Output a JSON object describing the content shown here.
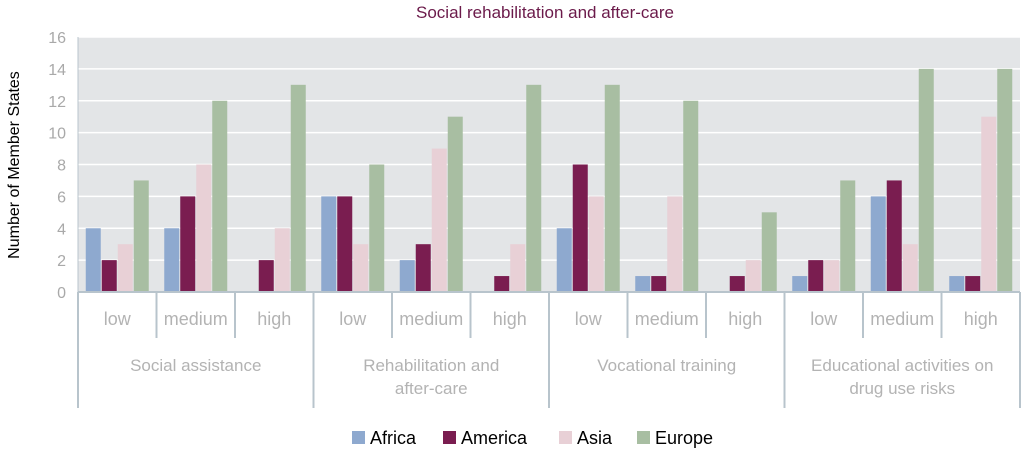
{
  "chart_data": {
    "type": "bar",
    "title": "Social rehabilitation and after-care",
    "ylabel": "Number of Member States",
    "xlabel": "",
    "ylim": [
      0,
      16
    ],
    "yticks": [
      0,
      2,
      4,
      6,
      8,
      10,
      12,
      14,
      16
    ],
    "grid": true,
    "legend_position": "bottom",
    "groups": [
      {
        "label_lines": [
          "Social assistance"
        ],
        "subcategories": [
          "low",
          "medium",
          "high"
        ]
      },
      {
        "label_lines": [
          "Rehabilitation and",
          "after-care"
        ],
        "subcategories": [
          "low",
          "medium",
          "high"
        ]
      },
      {
        "label_lines": [
          "Vocational training"
        ],
        "subcategories": [
          "low",
          "medium",
          "high"
        ]
      },
      {
        "label_lines": [
          "Educational activities on",
          "drug use risks"
        ],
        "subcategories": [
          "low",
          "medium",
          "high"
        ]
      }
    ],
    "categories": [
      "low",
      "medium",
      "high",
      "low",
      "medium",
      "high",
      "low",
      "medium",
      "high",
      "low",
      "medium",
      "high"
    ],
    "series": [
      {
        "name": "Africa",
        "color": "#8ea9cf",
        "values": [
          4,
          4,
          0,
          6,
          2,
          0,
          4,
          1,
          0,
          1,
          6,
          1
        ]
      },
      {
        "name": "America",
        "color": "#7a1d50",
        "values": [
          2,
          6,
          2,
          6,
          3,
          1,
          8,
          1,
          1,
          2,
          7,
          1
        ]
      },
      {
        "name": "Asia",
        "color": "#e8d0d6",
        "values": [
          3,
          8,
          4,
          3,
          9,
          3,
          6,
          6,
          2,
          2,
          3,
          11
        ]
      },
      {
        "name": "Europe",
        "color": "#a8bea2",
        "values": [
          7,
          12,
          13,
          8,
          11,
          13,
          13,
          12,
          5,
          7,
          14,
          14
        ]
      }
    ]
  },
  "colors": {
    "plot_background": "#e3e5e7",
    "gridline": "#ffffff",
    "axis_line": "#b8c4cc",
    "title": "#6b1a4a"
  }
}
